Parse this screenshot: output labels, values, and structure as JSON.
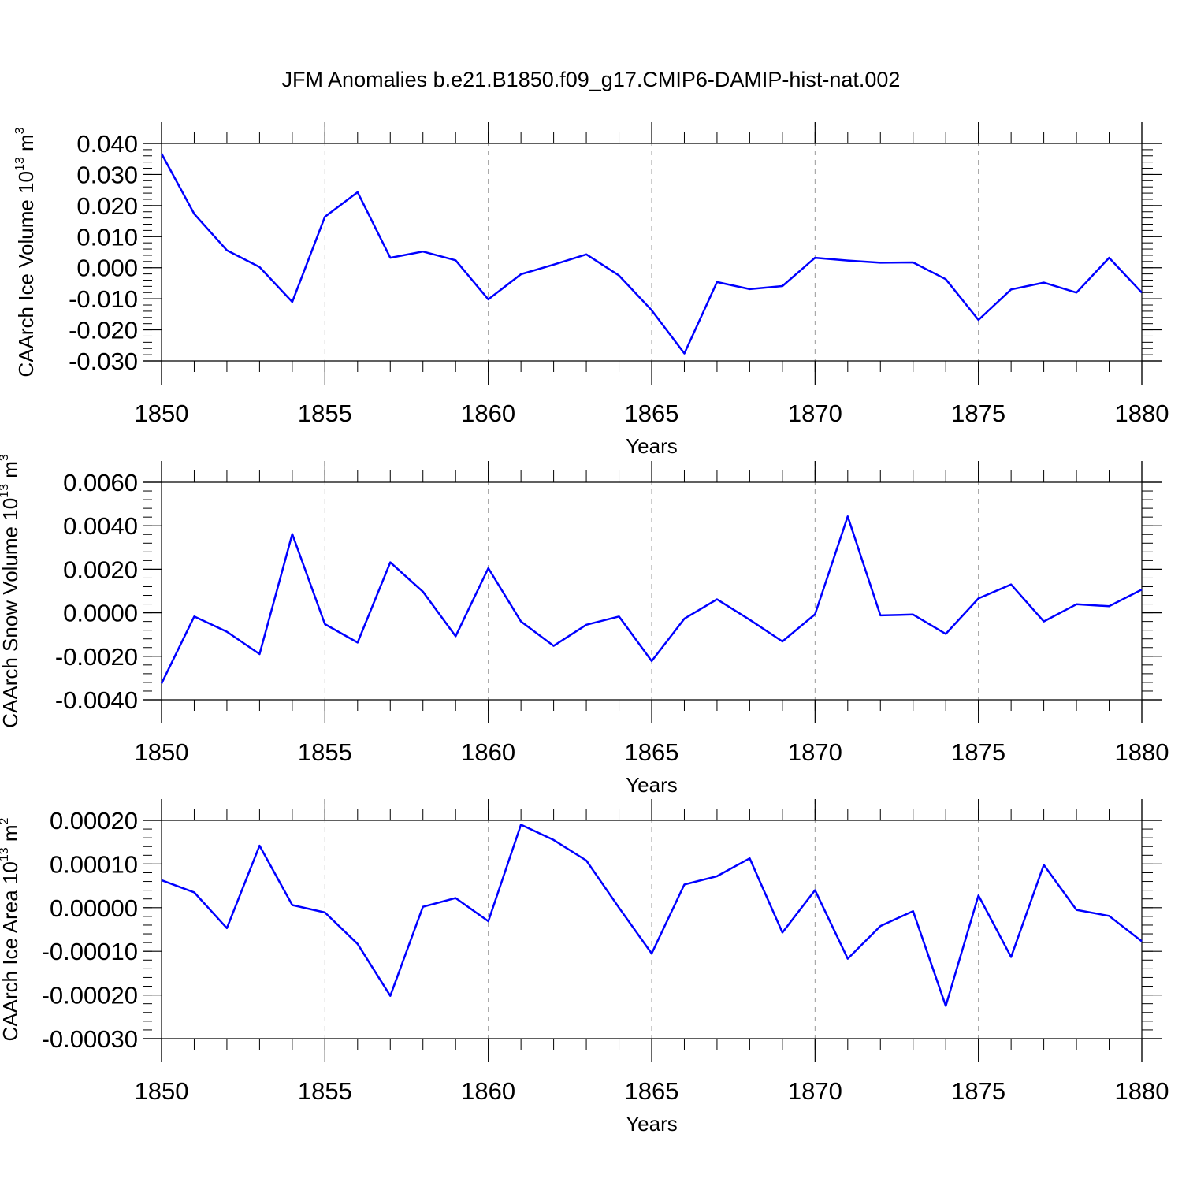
{
  "title": "JFM Anomalies b.e21.B1850.f09_g17.CMIP6-DAMIP-hist-nat.002",
  "colors": {
    "line": "#0000ff",
    "axis": "#000000",
    "grid": "#999999",
    "background": "#ffffff"
  },
  "chart_data": [
    {
      "type": "line",
      "title": "JFM Anomalies b.e21.B1850.f09_g17.CMIP6-DAMIP-hist-nat.002",
      "xlabel": "Years",
      "ylabel_text": "CAArch Ice Volume 10",
      "ylabel_exponent": "13",
      "ylabel_unit": "m",
      "ylabel_unit_exponent": "3",
      "xlim": [
        1850,
        1880
      ],
      "ylim": [
        -0.03,
        0.04
      ],
      "xticks": [
        1850,
        1855,
        1860,
        1865,
        1870,
        1875,
        1880
      ],
      "xtick_labels": [
        "1850",
        "1855",
        "1860",
        "1865",
        "1870",
        "1875",
        "1880"
      ],
      "yticks": [
        -0.03,
        -0.02,
        -0.01,
        0.0,
        0.01,
        0.02,
        0.03,
        0.04
      ],
      "ytick_labels": [
        "-0.030",
        "-0.020",
        "-0.010",
        "0.000",
        "0.010",
        "0.020",
        "0.030",
        "0.040"
      ],
      "yminor_step": 0.002,
      "grid": "vertical dashed at major x ticks",
      "x": [
        1850,
        1851,
        1852,
        1853,
        1854,
        1855,
        1856,
        1857,
        1858,
        1859,
        1860,
        1861,
        1862,
        1863,
        1864,
        1865,
        1866,
        1867,
        1868,
        1869,
        1870,
        1871,
        1872,
        1873,
        1874,
        1875,
        1876,
        1877,
        1878,
        1879,
        1880
      ],
      "series": [
        {
          "name": "CAArch Ice Volume",
          "values": [
            0.0367,
            0.0173,
            0.0056,
            0.0002,
            -0.011,
            0.0164,
            0.0243,
            0.0032,
            0.0052,
            0.0024,
            -0.0102,
            -0.0021,
            0.001,
            0.0043,
            -0.0025,
            -0.0137,
            -0.0276,
            -0.0046,
            -0.0069,
            -0.0059,
            0.0032,
            0.0023,
            0.0016,
            0.0017,
            -0.0037,
            -0.0168,
            -0.007,
            -0.0048,
            -0.008,
            0.0032,
            -0.008
          ]
        }
      ]
    },
    {
      "type": "line",
      "xlabel": "Years",
      "ylabel_text": "CAArch Snow Volume 10",
      "ylabel_exponent": "13",
      "ylabel_unit": "m",
      "ylabel_unit_exponent": "3",
      "xlim": [
        1850,
        1880
      ],
      "ylim": [
        -0.004,
        0.006
      ],
      "xticks": [
        1850,
        1855,
        1860,
        1865,
        1870,
        1875,
        1880
      ],
      "xtick_labels": [
        "1850",
        "1855",
        "1860",
        "1865",
        "1870",
        "1875",
        "1880"
      ],
      "yticks": [
        -0.004,
        -0.002,
        0.0,
        0.002,
        0.004,
        0.006
      ],
      "ytick_labels": [
        "-0.0040",
        "-0.0020",
        "0.0000",
        "0.0020",
        "0.0040",
        "0.0060"
      ],
      "yminor_step": 0.0004,
      "grid": "vertical dashed at major x ticks",
      "x": [
        1850,
        1851,
        1852,
        1853,
        1854,
        1855,
        1856,
        1857,
        1858,
        1859,
        1860,
        1861,
        1862,
        1863,
        1864,
        1865,
        1866,
        1867,
        1868,
        1869,
        1870,
        1871,
        1872,
        1873,
        1874,
        1875,
        1876,
        1877,
        1878,
        1879,
        1880
      ],
      "series": [
        {
          "name": "CAArch Snow Volume",
          "values": [
            -0.00325,
            -0.00017,
            -0.00087,
            -0.0019,
            0.00362,
            -0.00052,
            -0.00137,
            0.00232,
            0.00097,
            -0.00108,
            0.00205,
            -0.0004,
            -0.00152,
            -0.00055,
            -0.00017,
            -0.00222,
            -0.00027,
            0.00062,
            -0.00032,
            -0.00132,
            -7e-05,
            0.00443,
            -0.00012,
            -8e-05,
            -0.00097,
            0.00066,
            0.0013,
            -0.0004,
            0.00039,
            0.0003,
            0.00107
          ]
        }
      ]
    },
    {
      "type": "line",
      "xlabel": "Years",
      "ylabel_text": "CAArch Ice Area 10",
      "ylabel_exponent": "13",
      "ylabel_unit": "m",
      "ylabel_unit_exponent": "2",
      "xlim": [
        1850,
        1880
      ],
      "ylim": [
        -0.0003,
        0.0002
      ],
      "xticks": [
        1850,
        1855,
        1860,
        1865,
        1870,
        1875,
        1880
      ],
      "xtick_labels": [
        "1850",
        "1855",
        "1860",
        "1865",
        "1870",
        "1875",
        "1880"
      ],
      "yticks": [
        -0.0003,
        -0.0002,
        -0.0001,
        0.0,
        0.0001,
        0.0002
      ],
      "ytick_labels": [
        "-0.00030",
        "-0.00020",
        "-0.00010",
        "0.00000",
        "0.00010",
        "0.00020"
      ],
      "yminor_step": 2e-05,
      "grid": "vertical dashed at major x ticks",
      "x": [
        1850,
        1851,
        1852,
        1853,
        1854,
        1855,
        1856,
        1857,
        1858,
        1859,
        1860,
        1861,
        1862,
        1863,
        1864,
        1865,
        1866,
        1867,
        1868,
        1869,
        1870,
        1871,
        1872,
        1873,
        1874,
        1875,
        1876,
        1877,
        1878,
        1879,
        1880
      ],
      "series": [
        {
          "name": "CAArch Ice Area",
          "values": [
            6.3e-05,
            3.5e-05,
            -4.7e-05,
            0.000142,
            6e-06,
            -1.1e-05,
            -8.3e-05,
            -0.000202,
            2e-06,
            2.2e-05,
            -3.1e-05,
            0.00019,
            0.000155,
            0.000108,
            0.0,
            -0.000105,
            5.3e-05,
            7.2e-05,
            0.000113,
            -5.7e-05,
            4e-05,
            -0.000117,
            -4.2e-05,
            -8e-06,
            -0.000225,
            2.8e-05,
            -0.000113,
            9.8e-05,
            -5e-06,
            -1.9e-05,
            -7.7e-05
          ]
        }
      ]
    }
  ]
}
